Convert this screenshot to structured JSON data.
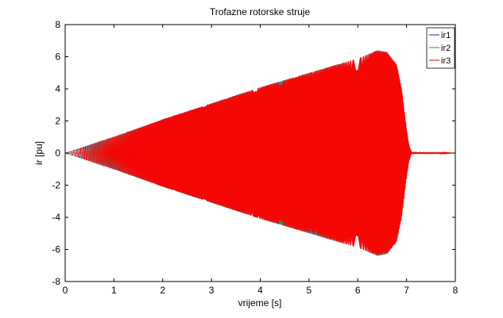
{
  "chart_data": {
    "type": "line",
    "title": "Trofazne rotorske struje",
    "xlabel": "vrijeme [s]",
    "ylabel": "ir [pu]",
    "xlim": [
      0,
      8
    ],
    "ylim": [
      -8,
      8
    ],
    "xticks": [
      0,
      1,
      2,
      3,
      4,
      5,
      6,
      7,
      8
    ],
    "yticks": [
      -8,
      -6,
      -4,
      -2,
      0,
      2,
      4,
      6,
      8
    ],
    "grid": false,
    "legend_position": "top-right",
    "series": [
      {
        "name": "ir1",
        "color": "#1f1fbf"
      },
      {
        "name": "ir2",
        "color": "#2f8f2f"
      },
      {
        "name": "ir3",
        "color": "#ff0000"
      }
    ],
    "envelope": {
      "x": [
        0,
        1,
        2,
        3,
        4,
        5,
        6,
        6.4,
        6.6,
        6.8,
        6.9,
        7.0,
        7.05,
        7.1,
        8
      ],
      "amplitude": [
        0,
        1.0,
        2.1,
        3.1,
        4.1,
        5.0,
        5.9,
        6.4,
        6.3,
        5.5,
        4.0,
        1.5,
        0.5,
        0.05,
        0
      ]
    }
  }
}
